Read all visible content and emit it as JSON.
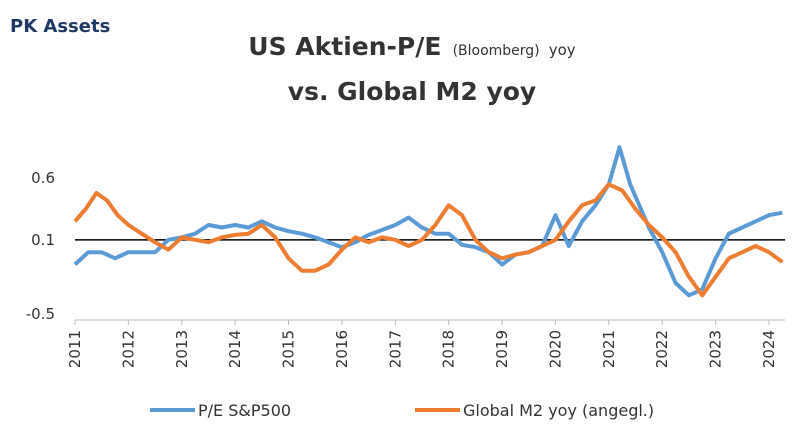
{
  "brand": "PK Assets",
  "chart_data": {
    "type": "line",
    "title": "US Aktien-P/E",
    "title_note": "(Bloomberg)",
    "title_suffix": "yoy",
    "subtitle": "vs. Global M2 yoy",
    "xlim": [
      2011,
      2024.3
    ],
    "xticks": [
      2011,
      2012,
      2013,
      2014,
      2015,
      2016,
      2017,
      2018,
      2019,
      2020,
      2021,
      2022,
      2023,
      2024
    ],
    "ylim": [
      -0.55,
      0.95
    ],
    "yticks": [
      0.6,
      0.1,
      -0.5
    ],
    "reference_line": 0.1,
    "series": [
      {
        "name": "P/E S&P500",
        "color": "#5b9bd5",
        "x": [
          2011,
          2011.25,
          2011.5,
          2011.75,
          2012,
          2012.25,
          2012.5,
          2012.75,
          2013,
          2013.25,
          2013.5,
          2013.75,
          2014,
          2014.25,
          2014.5,
          2014.75,
          2015,
          2015.25,
          2015.5,
          2015.75,
          2016,
          2016.25,
          2016.5,
          2016.75,
          2017,
          2017.25,
          2017.5,
          2017.75,
          2018,
          2018.25,
          2018.5,
          2018.75,
          2019,
          2019.25,
          2019.5,
          2019.75,
          2020,
          2020.25,
          2020.5,
          2020.75,
          2021,
          2021.2,
          2021.4,
          2021.6,
          2021.75,
          2022,
          2022.25,
          2022.5,
          2022.75,
          2023,
          2023.25,
          2023.5,
          2023.75,
          2024,
          2024.25
        ],
        "values": [
          -0.1,
          0.0,
          0.0,
          -0.05,
          0.0,
          0.0,
          0.0,
          0.1,
          0.12,
          0.15,
          0.22,
          0.2,
          0.22,
          0.2,
          0.25,
          0.2,
          0.17,
          0.15,
          0.12,
          0.08,
          0.04,
          0.08,
          0.14,
          0.18,
          0.22,
          0.28,
          0.2,
          0.15,
          0.15,
          0.06,
          0.04,
          0.0,
          -0.1,
          -0.02,
          0.0,
          0.05,
          0.3,
          0.05,
          0.25,
          0.38,
          0.55,
          0.85,
          0.55,
          0.35,
          0.2,
          0.0,
          -0.25,
          -0.35,
          -0.3,
          -0.05,
          0.15,
          0.2,
          0.25,
          0.3,
          0.32
        ]
      },
      {
        "name": "Global M2 yoy (angegl.)",
        "color": "#ed7d31",
        "x": [
          2011,
          2011.2,
          2011.4,
          2011.6,
          2011.8,
          2012,
          2012.25,
          2012.5,
          2012.75,
          2013,
          2013.25,
          2013.5,
          2013.75,
          2014,
          2014.25,
          2014.5,
          2014.75,
          2015,
          2015.25,
          2015.5,
          2015.75,
          2016,
          2016.25,
          2016.5,
          2016.75,
          2017,
          2017.25,
          2017.5,
          2017.75,
          2018,
          2018.25,
          2018.5,
          2018.75,
          2019,
          2019.25,
          2019.5,
          2019.75,
          2020,
          2020.25,
          2020.5,
          2020.75,
          2021,
          2021.25,
          2021.5,
          2021.75,
          2022,
          2022.25,
          2022.5,
          2022.75,
          2023,
          2023.25,
          2023.5,
          2023.75,
          2024,
          2024.25
        ],
        "values": [
          0.25,
          0.35,
          0.48,
          0.42,
          0.3,
          0.22,
          0.15,
          0.08,
          0.02,
          0.12,
          0.1,
          0.08,
          0.12,
          0.14,
          0.15,
          0.22,
          0.12,
          -0.05,
          -0.15,
          -0.15,
          -0.1,
          0.02,
          0.12,
          0.08,
          0.12,
          0.1,
          0.05,
          0.1,
          0.22,
          0.38,
          0.3,
          0.1,
          0.0,
          -0.05,
          -0.02,
          0.0,
          0.05,
          0.1,
          0.25,
          0.38,
          0.42,
          0.55,
          0.5,
          0.35,
          0.22,
          0.12,
          0.0,
          -0.2,
          -0.35,
          -0.2,
          -0.05,
          0.0,
          0.05,
          0.0,
          -0.08
        ]
      }
    ]
  }
}
